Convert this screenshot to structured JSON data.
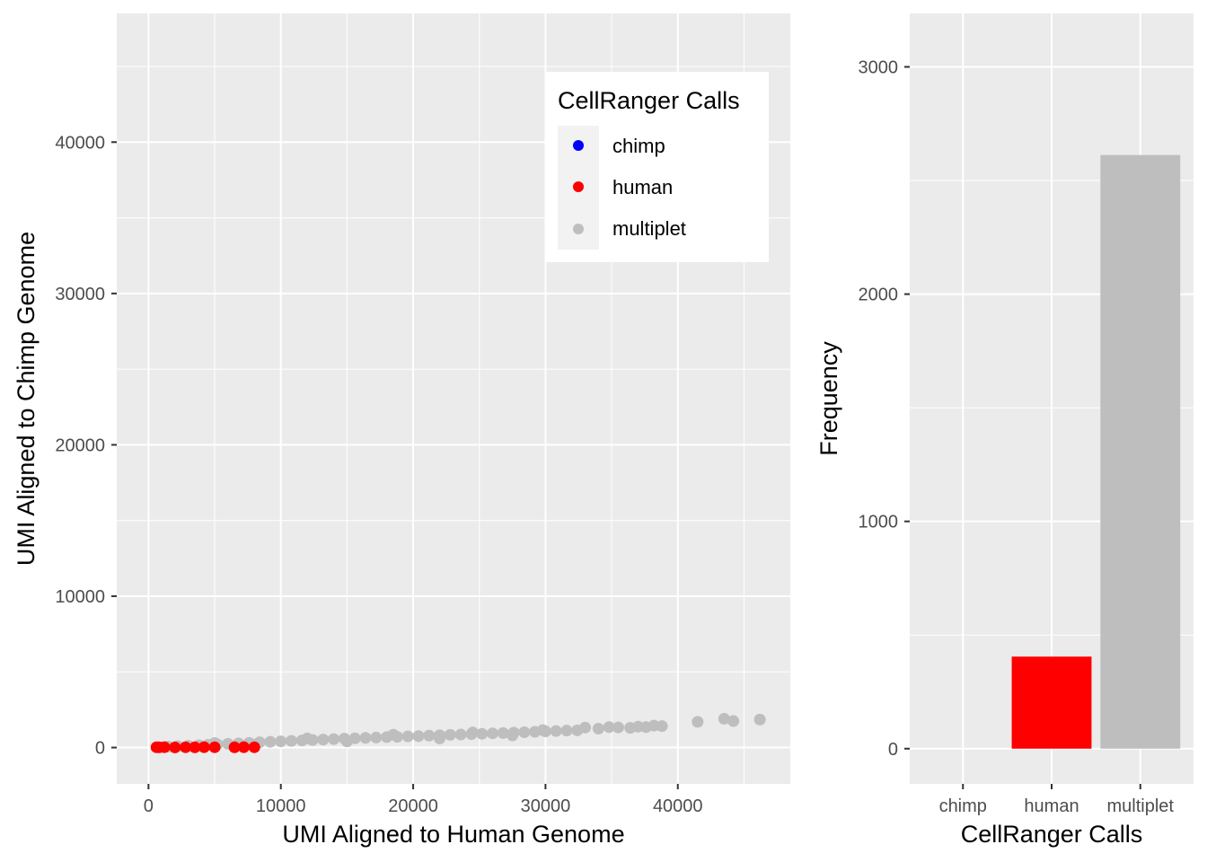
{
  "chart_data": [
    {
      "type": "scatter",
      "xlabel": "UMI Aligned to Human Genome",
      "ylabel": "UMI Aligned to Chimp Genome",
      "xlim": [
        -2400,
        48500
      ],
      "ylim": [
        -2400,
        48500
      ],
      "x_ticks": [
        0,
        10000,
        20000,
        30000,
        40000
      ],
      "y_ticks": [
        0,
        10000,
        20000,
        30000,
        40000
      ],
      "grid": true,
      "legend": {
        "title": "CellRanger Calls",
        "position": "top-right",
        "entries": [
          "chimp",
          "human",
          "multiplet"
        ]
      },
      "colors": {
        "chimp": "#0000ff",
        "human": "#ff0000",
        "multiplet": "#bebebe"
      },
      "series": [
        {
          "name": "multiplet",
          "color": "#bebebe",
          "points": [
            [
              1500,
              60
            ],
            [
              2200,
              90
            ],
            [
              3000,
              120
            ],
            [
              3800,
              150
            ],
            [
              4500,
              180
            ],
            [
              5200,
              210
            ],
            [
              6000,
              250
            ],
            [
              6800,
              280
            ],
            [
              7600,
              310
            ],
            [
              8400,
              350
            ],
            [
              9200,
              380
            ],
            [
              10000,
              410
            ],
            [
              10800,
              440
            ],
            [
              11600,
              470
            ],
            [
              12400,
              500
            ],
            [
              13200,
              530
            ],
            [
              14000,
              560
            ],
            [
              14800,
              590
            ],
            [
              15600,
              610
            ],
            [
              16400,
              640
            ],
            [
              17200,
              660
            ],
            [
              18000,
              690
            ],
            [
              18800,
              710
            ],
            [
              19600,
              740
            ],
            [
              20400,
              760
            ],
            [
              21200,
              790
            ],
            [
              22000,
              810
            ],
            [
              22800,
              840
            ],
            [
              23600,
              860
            ],
            [
              24400,
              890
            ],
            [
              25200,
              910
            ],
            [
              26000,
              940
            ],
            [
              26800,
              960
            ],
            [
              27600,
              990
            ],
            [
              28400,
              1010
            ],
            [
              29200,
              1040
            ],
            [
              30000,
              1070
            ],
            [
              30800,
              1090
            ],
            [
              31600,
              1120
            ],
            [
              32400,
              1140
            ],
            [
              33000,
              1320
            ],
            [
              34000,
              1250
            ],
            [
              34800,
              1350
            ],
            [
              35500,
              1330
            ],
            [
              36400,
              1300
            ],
            [
              37000,
              1380
            ],
            [
              37600,
              1350
            ],
            [
              38200,
              1450
            ],
            [
              38800,
              1420
            ],
            [
              41500,
              1700
            ],
            [
              43500,
              1900
            ],
            [
              44200,
              1750
            ],
            [
              46200,
              1850
            ],
            [
              5000,
              300
            ],
            [
              12000,
              600
            ],
            [
              18500,
              850
            ],
            [
              24500,
              1000
            ],
            [
              29800,
              1150
            ],
            [
              15000,
              400
            ],
            [
              22000,
              600
            ],
            [
              8000,
              200
            ],
            [
              27500,
              800
            ]
          ]
        },
        {
          "name": "human",
          "color": "#ff0000",
          "points": [
            [
              600,
              20
            ],
            [
              800,
              15
            ],
            [
              1200,
              25
            ],
            [
              2000,
              10
            ],
            [
              2800,
              20
            ],
            [
              3500,
              15
            ],
            [
              4200,
              25
            ],
            [
              5000,
              20
            ],
            [
              6500,
              15
            ],
            [
              7200,
              25
            ],
            [
              8000,
              20
            ]
          ]
        }
      ]
    },
    {
      "type": "bar",
      "xlabel": "CellRanger Calls",
      "ylabel": "Frequency",
      "categories": [
        "chimp",
        "human",
        "multiplet"
      ],
      "values": [
        0,
        405,
        2612
      ],
      "colors": [
        "#0000ff",
        "#ff0000",
        "#bebebe"
      ],
      "ylim": [
        -155,
        3235
      ],
      "y_ticks": [
        0,
        1000,
        2000,
        3000
      ],
      "grid": true
    }
  ]
}
